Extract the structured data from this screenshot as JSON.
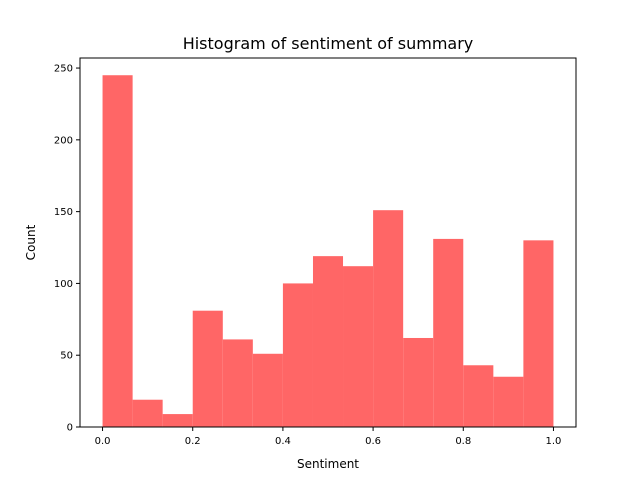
{
  "chart_data": {
    "type": "bar",
    "title": "Histogram of sentiment of summary",
    "xlabel": "Sentiment",
    "ylabel": "Count",
    "color": "#ff6666",
    "bin_edges": [
      0.0,
      0.0667,
      0.1333,
      0.2,
      0.2667,
      0.3333,
      0.4,
      0.4667,
      0.5333,
      0.6,
      0.6667,
      0.7333,
      0.8,
      0.8667,
      0.9333,
      1.0
    ],
    "values": [
      245,
      19,
      9,
      81,
      61,
      51,
      100,
      119,
      112,
      151,
      62,
      131,
      43,
      35,
      130
    ],
    "xlim": [
      -0.05,
      1.05
    ],
    "ylim": [
      0,
      257
    ],
    "xticks": [
      0.0,
      0.2,
      0.4,
      0.6,
      0.8,
      1.0
    ],
    "xtick_labels": [
      "0.0",
      "0.2",
      "0.4",
      "0.6",
      "0.8",
      "1.0"
    ],
    "yticks": [
      0,
      50,
      100,
      150,
      200,
      250
    ],
    "ytick_labels": [
      "0",
      "50",
      "100",
      "150",
      "200",
      "250"
    ],
    "grid": false,
    "legend": "none"
  }
}
